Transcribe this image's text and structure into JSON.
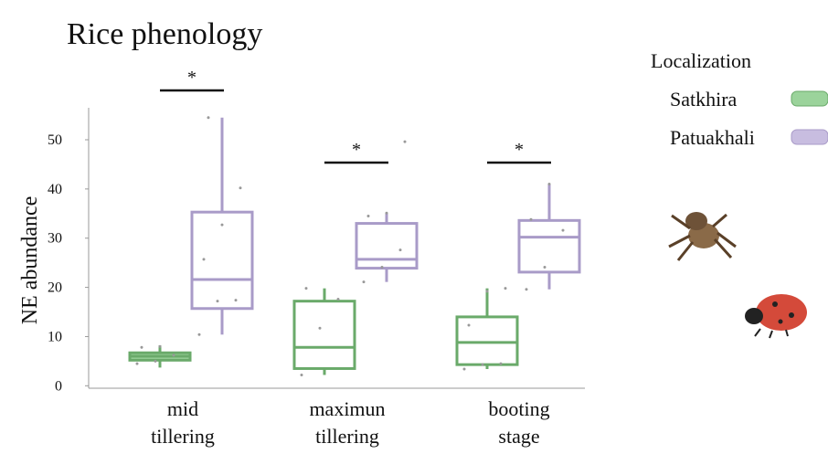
{
  "chart_data": {
    "type": "box",
    "title": "Rice phenology",
    "y_label": "NE abundance",
    "categories": [
      [
        "mid",
        "tillering"
      ],
      [
        "maximun",
        "tillering"
      ],
      [
        "booting",
        "stage"
      ]
    ],
    "legend_title": "Localization",
    "annotations": [
      "*",
      "*",
      "*"
    ],
    "ylim": [
      -0.5,
      56.5
    ],
    "yticks": [
      0,
      10,
      20,
      30,
      40,
      50
    ],
    "series": [
      {
        "name": "Satkhira",
        "color": "#6aaa6a",
        "fill": "#9bd39b",
        "boxes": [
          {
            "low": 3.7,
            "q1": 5.2,
            "median": 6.0,
            "q3": 6.7,
            "high": 8.2
          },
          {
            "low": 2.2,
            "q1": 3.5,
            "median": 7.8,
            "q3": 17.2,
            "high": 19.8
          },
          {
            "low": 3.4,
            "q1": 4.3,
            "median": 8.8,
            "q3": 14.0,
            "high": 19.8
          }
        ],
        "points": [
          [
            4.5,
            5.0,
            6.2,
            7.8,
            8.0
          ],
          [
            2.2,
            11.7,
            17.6,
            19.8
          ],
          [
            3.4,
            4.3,
            4.5,
            12.3,
            19.2,
            19.8
          ]
        ]
      },
      {
        "name": "Patuakhali",
        "color": "#a99bc8",
        "fill": "#c8bde0",
        "boxes": [
          {
            "low": 10.4,
            "q1": 15.7,
            "median": 21.6,
            "q3": 35.3,
            "high": 54.5
          },
          {
            "low": 21.1,
            "q1": 23.9,
            "median": 25.7,
            "q3": 33.0,
            "high": 35.1
          },
          {
            "low": 19.6,
            "q1": 23.1,
            "median": 30.2,
            "q3": 33.6,
            "high": 41.0
          }
        ],
        "points": [
          [
            10.4,
            17.2,
            17.4,
            25.7,
            32.7,
            40.2,
            54.5
          ],
          [
            21.1,
            24.1,
            27.6,
            34.5,
            35.1,
            49.6
          ],
          [
            19.6,
            24.1,
            31.6,
            33.8,
            41.0
          ]
        ]
      }
    ]
  }
}
